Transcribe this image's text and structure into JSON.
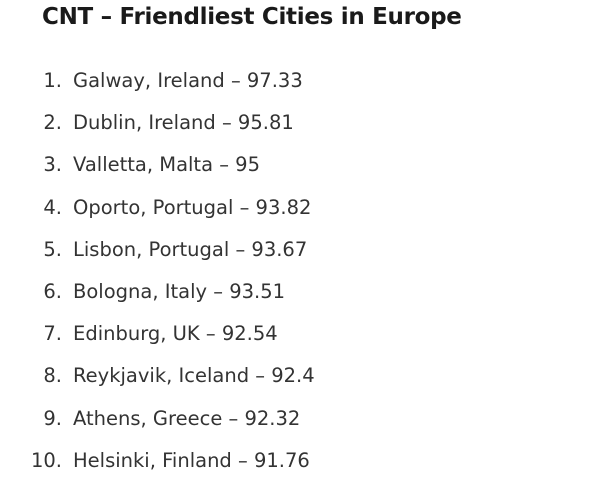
{
  "header": {
    "title": "CNT – Friendliest Cities in Europe"
  },
  "list": {
    "items": [
      {
        "rank": "1.",
        "text": "Galway, Ireland – 97.33"
      },
      {
        "rank": "2.",
        "text": "Dublin, Ireland – 95.81"
      },
      {
        "rank": "3.",
        "text": "Valletta, Malta – 95"
      },
      {
        "rank": "4.",
        "text": "Oporto, Portugal – 93.82"
      },
      {
        "rank": "5.",
        "text": "Lisbon, Portugal – 93.67"
      },
      {
        "rank": "6.",
        "text": "Bologna, Italy – 93.51"
      },
      {
        "rank": "7.",
        "text": "Edinburg, UK – 92.54"
      },
      {
        "rank": "8.",
        "text": "Reykjavik, Iceland – 92.4"
      },
      {
        "rank": "9.",
        "text": "Athens, Greece – 92.32"
      },
      {
        "rank": "10.",
        "text": "Helsinki, Finland – 91.76"
      }
    ]
  }
}
